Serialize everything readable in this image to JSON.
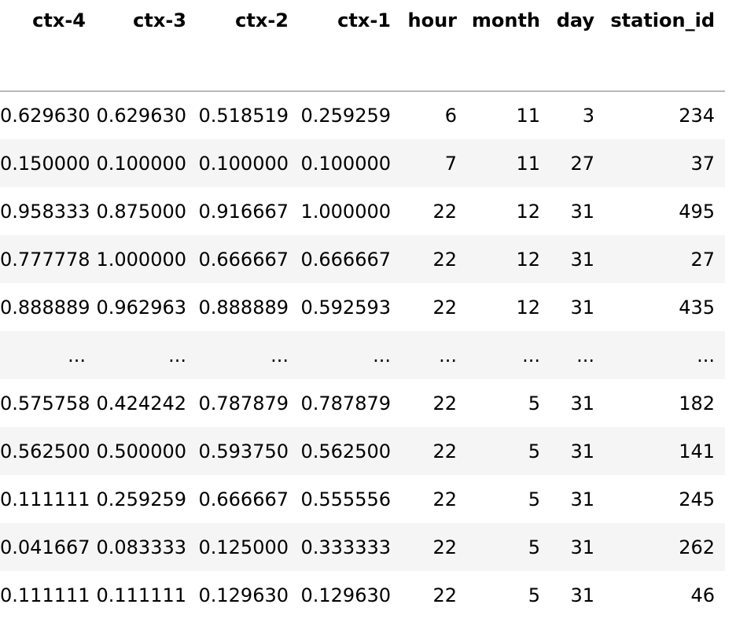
{
  "table": {
    "columns": [
      "ctx-4",
      "ctx-3",
      "ctx-2",
      "ctx-1",
      "hour",
      "month",
      "day",
      "station_id"
    ],
    "rows": [
      [
        "0.629630",
        "0.629630",
        "0.518519",
        "0.259259",
        "6",
        "11",
        "3",
        "234"
      ],
      [
        "0.150000",
        "0.100000",
        "0.100000",
        "0.100000",
        "7",
        "11",
        "27",
        "37"
      ],
      [
        "0.958333",
        "0.875000",
        "0.916667",
        "1.000000",
        "22",
        "12",
        "31",
        "495"
      ],
      [
        "0.777778",
        "1.000000",
        "0.666667",
        "0.666667",
        "22",
        "12",
        "31",
        "27"
      ],
      [
        "0.888889",
        "0.962963",
        "0.888889",
        "0.592593",
        "22",
        "12",
        "31",
        "435"
      ],
      [
        "...",
        "...",
        "...",
        "...",
        "...",
        "...",
        "...",
        "..."
      ],
      [
        "0.575758",
        "0.424242",
        "0.787879",
        "0.787879",
        "22",
        "5",
        "31",
        "182"
      ],
      [
        "0.562500",
        "0.500000",
        "0.593750",
        "0.562500",
        "22",
        "5",
        "31",
        "141"
      ],
      [
        "0.111111",
        "0.259259",
        "0.666667",
        "0.555556",
        "22",
        "5",
        "31",
        "245"
      ],
      [
        "0.041667",
        "0.083333",
        "0.125000",
        "0.333333",
        "22",
        "5",
        "31",
        "262"
      ],
      [
        "0.111111",
        "0.111111",
        "0.129630",
        "0.129630",
        "22",
        "5",
        "31",
        "46"
      ]
    ]
  },
  "colors": {
    "stripe": "#f5f5f5",
    "header_rule": "#b9b9b9"
  }
}
